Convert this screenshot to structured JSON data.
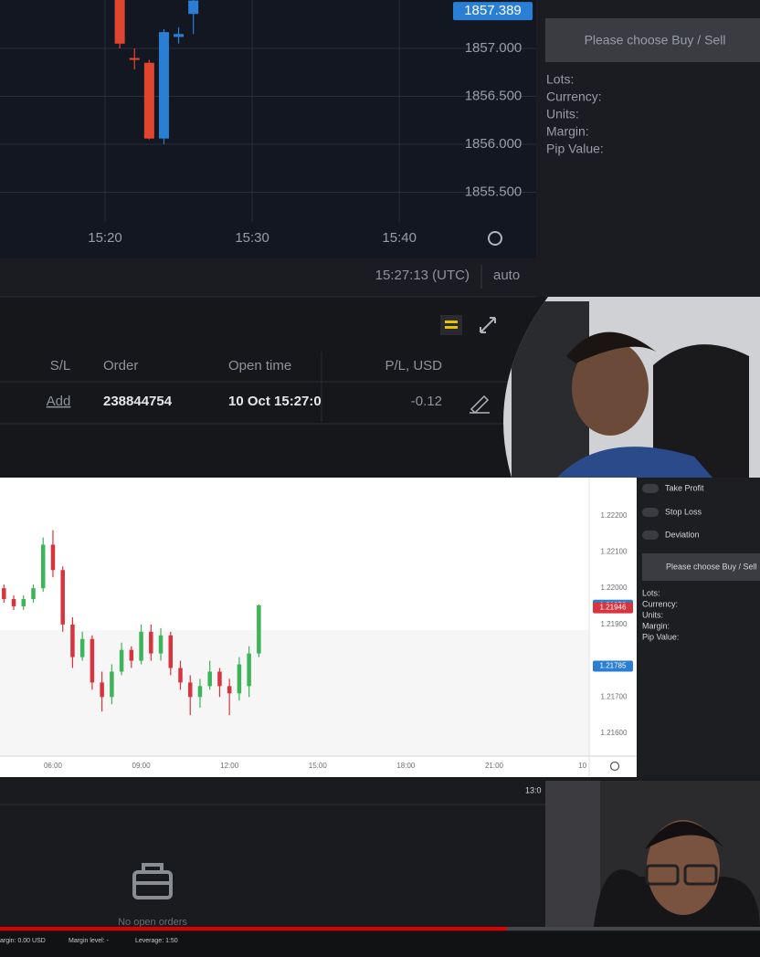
{
  "chart_data": [
    {
      "type": "candlestick",
      "x": [
        921,
        922,
        923,
        924,
        925,
        926
      ],
      "open": [
        1857.6,
        1856.9,
        1856.85,
        1856.06,
        1857.12,
        1857.36
      ],
      "high": [
        1857.62,
        1857.0,
        1856.88,
        1857.2,
        1857.22,
        1857.6
      ],
      "low": [
        1857.0,
        1856.78,
        1856.05,
        1856.0,
        1857.05,
        1857.15
      ],
      "close": [
        1857.05,
        1856.88,
        1856.06,
        1857.17,
        1857.15,
        1857.5
      ],
      "up_color": "#2a7fd4",
      "down_color": "#e0452f",
      "xlim": [
        912.86,
        949.3
      ],
      "xticks": [
        {
          "value": 920,
          "label": "15:20"
        },
        {
          "value": 930,
          "label": "15:30"
        },
        {
          "value": 940,
          "label": "15:40"
        }
      ],
      "ylim": [
        1855.19,
        1857.505
      ],
      "yticks": [
        {
          "value": 1857,
          "label": "1857.000"
        },
        {
          "value": 1856.5,
          "label": "1856.500"
        },
        {
          "value": 1856,
          "label": "1856.000"
        },
        {
          "value": 1855.5,
          "label": "1855.500"
        }
      ],
      "grid": true,
      "price_labels": [
        {
          "value": 1857.389,
          "color": "#2a7fd4"
        }
      ]
    },
    {
      "type": "candlestick",
      "x": [
        260,
        280,
        300,
        320,
        340,
        360,
        380,
        400,
        420,
        440,
        460,
        480,
        500,
        520,
        540,
        560,
        580,
        600,
        620,
        640,
        660,
        680,
        700,
        720,
        740,
        760,
        780
      ],
      "open": [
        1.22,
        1.2197,
        1.2195,
        1.2197,
        1.22,
        1.2212,
        1.2205,
        1.219,
        1.2181,
        1.2186,
        1.2174,
        1.217,
        1.2177,
        1.2183,
        1.218,
        1.2188,
        1.2182,
        1.2187,
        1.2178,
        1.2174,
        1.217,
        1.2173,
        1.2177,
        1.2173,
        1.2171,
        1.2173,
        1.2182
      ],
      "high": [
        1.2201,
        1.2198,
        1.2198,
        1.2201,
        1.2214,
        1.2216,
        1.2206,
        1.2192,
        1.2188,
        1.2187,
        1.2177,
        1.2179,
        1.2185,
        1.2184,
        1.219,
        1.219,
        1.2189,
        1.2188,
        1.218,
        1.2176,
        1.2175,
        1.218,
        1.2178,
        1.2175,
        1.2181,
        1.2184,
        1.21955
      ],
      "low": [
        1.2196,
        1.2194,
        1.2194,
        1.2196,
        1.2199,
        1.2203,
        1.2188,
        1.2178,
        1.218,
        1.2172,
        1.2166,
        1.2168,
        1.2176,
        1.2178,
        1.2179,
        1.218,
        1.218,
        1.2176,
        1.2172,
        1.2165,
        1.2167,
        1.2172,
        1.217,
        1.2165,
        1.2169,
        1.217,
        1.2181
      ],
      "close": [
        1.2197,
        1.2195,
        1.2197,
        1.22,
        1.2212,
        1.2205,
        1.219,
        1.2181,
        1.2186,
        1.2174,
        1.217,
        1.2177,
        1.2183,
        1.218,
        1.2188,
        1.2182,
        1.2187,
        1.2178,
        1.2174,
        1.217,
        1.2173,
        1.2177,
        1.2173,
        1.2171,
        1.2179,
        1.2182,
        1.21953
      ],
      "up_color": "#3db35a",
      "down_color": "#d8343f",
      "xlim": [
        252,
        1453.8
      ],
      "xticks": [
        {
          "value": 360,
          "label": "06:00"
        },
        {
          "value": 540,
          "label": "09:00"
        },
        {
          "value": 720,
          "label": "12:00"
        },
        {
          "value": 900,
          "label": "15:00"
        },
        {
          "value": 1080,
          "label": "18:00"
        },
        {
          "value": 1260,
          "label": "21:00"
        },
        {
          "value": 1440,
          "label": "10"
        }
      ],
      "ylim": [
        1.21537,
        1.223
      ],
      "yticks": [
        {
          "value": 1.222,
          "label": "1.22200"
        },
        {
          "value": 1.221,
          "label": "1.22100"
        },
        {
          "value": 1.22,
          "label": "1.22000"
        },
        {
          "value": 1.219,
          "label": "1.21900"
        },
        {
          "value": 1.217,
          "label": "1.21700"
        },
        {
          "value": 1.216,
          "label": "1.21600"
        }
      ],
      "grid": false,
      "price_labels": [
        {
          "value": 1.21953,
          "color": "#2a7fd4"
        },
        {
          "value": 1.21946,
          "color": "#d8343f"
        },
        {
          "value": 1.21785,
          "color": "#2a7fd4"
        }
      ]
    }
  ],
  "order_panel_top": {
    "button": "Please choose Buy / Sell",
    "fields": [
      "Lots:",
      "Currency:",
      "Units:",
      "Margin:",
      "Pip Value:"
    ]
  },
  "status_bar": {
    "time": "15:27:13 (UTC)",
    "mode": "auto"
  },
  "orders_table": {
    "headers": [
      "S/L",
      "Order",
      "Open time",
      "P/L, USD"
    ],
    "rows": [
      [
        "Add",
        "238844754",
        "10 Oct 15:27:0",
        "-0.12"
      ]
    ]
  },
  "order_panel_bottom": {
    "toggles": [
      "Take Profit",
      "Stop Loss",
      "Deviation"
    ],
    "button": "Please choose Buy / Sell",
    "fields": [
      "Lots:",
      "Currency:",
      "Units:",
      "Margin:",
      "Pip Value:"
    ]
  },
  "bottom_panel": {
    "time": "13:0",
    "empty_message": "No open orders",
    "footer": [
      "argin: 0.00 USD",
      "Margin level: -",
      "Leverage: 1:50"
    ]
  }
}
